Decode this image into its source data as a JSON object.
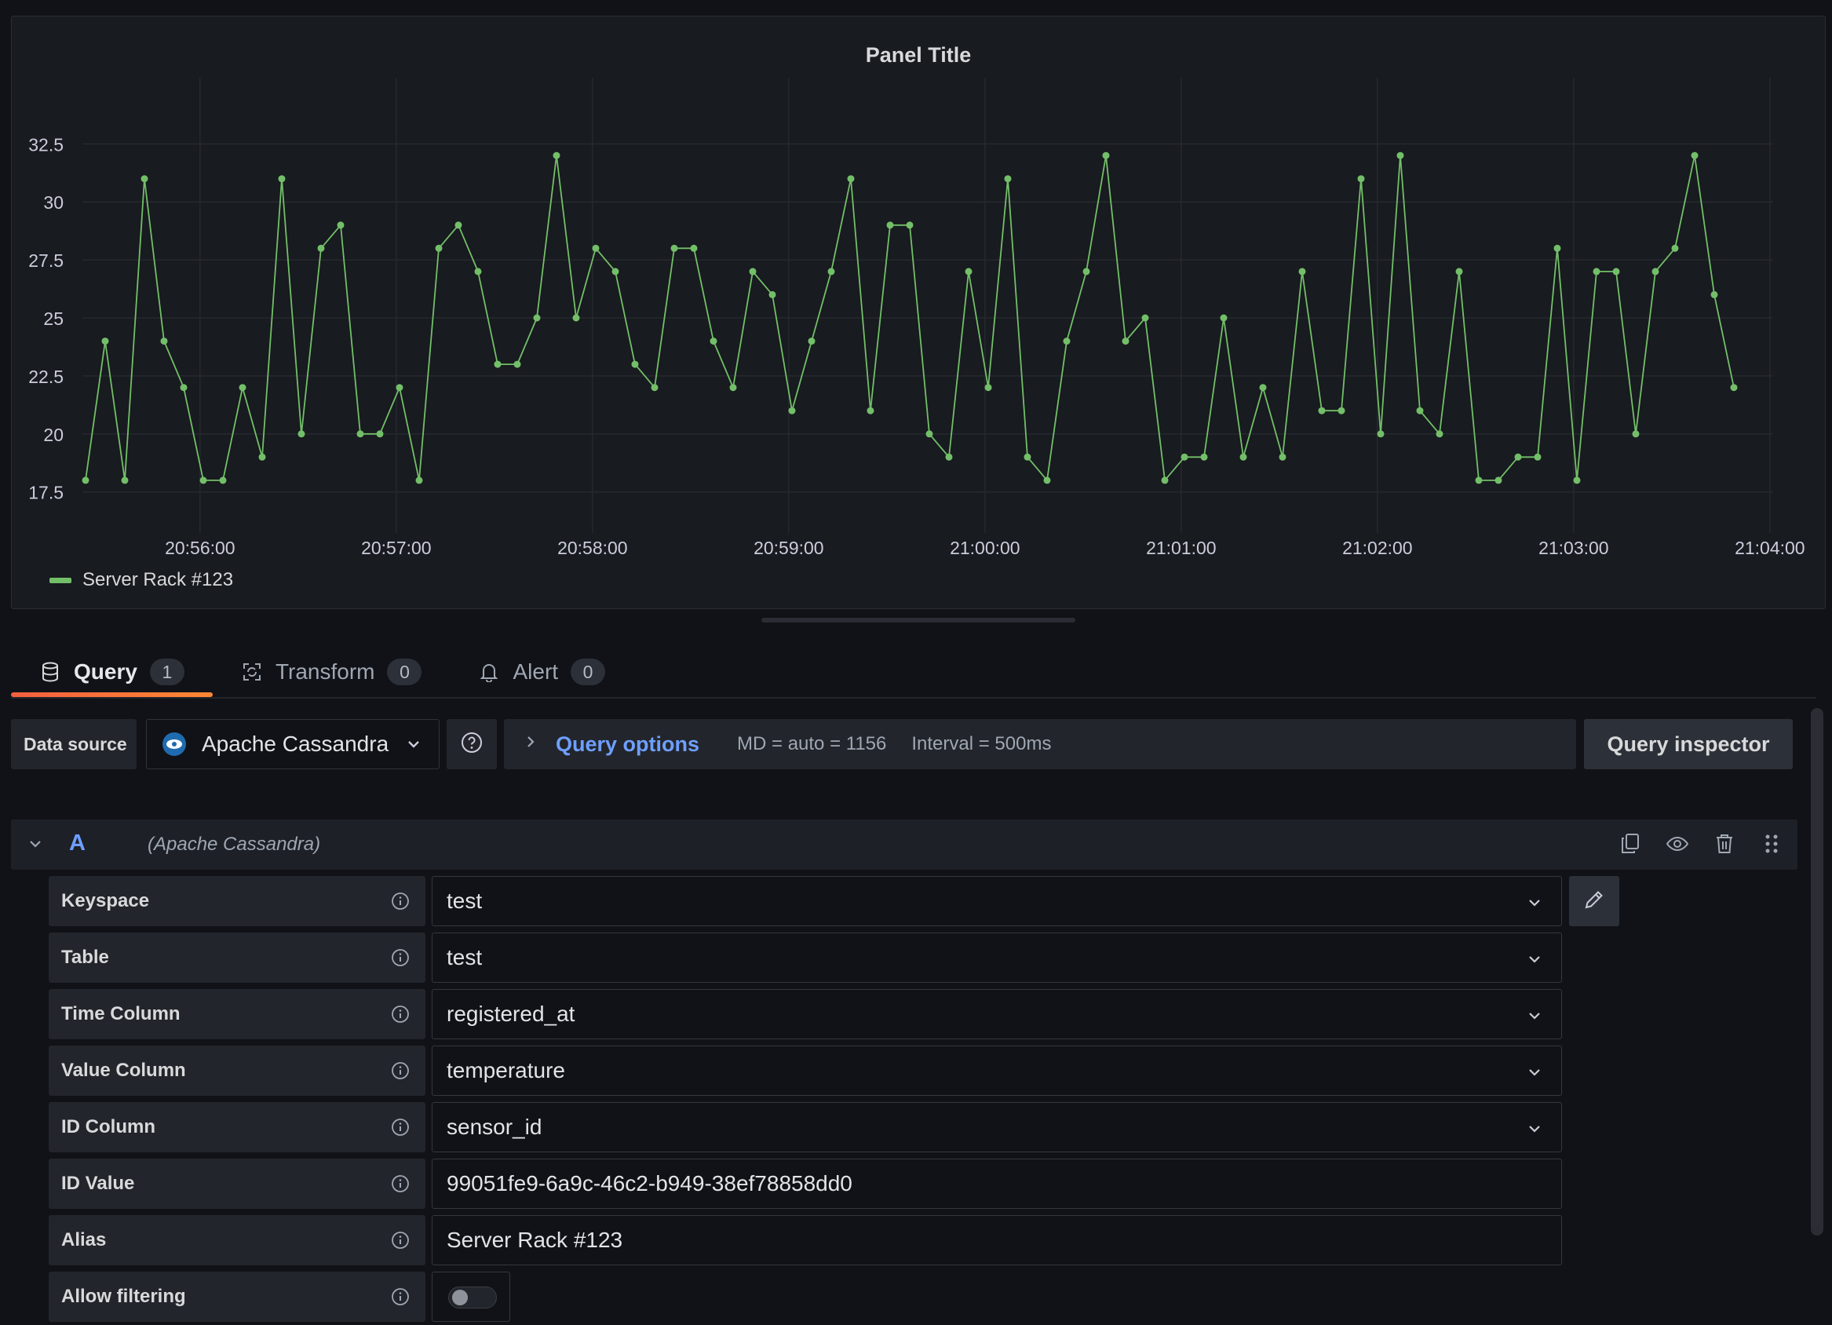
{
  "panel": {
    "title": "Panel Title",
    "legend": [
      {
        "label": "Server Rack #123",
        "color": "#73bf69"
      }
    ]
  },
  "chart_data": {
    "type": "line",
    "title": "Panel Title",
    "xlabel": "",
    "ylabel": "",
    "ylim": [
      16.0,
      34.0
    ],
    "y_ticks": [
      "17.5",
      "20",
      "22.5",
      "25",
      "27.5",
      "30",
      "32.5"
    ],
    "x_ticks": [
      "20:56:00",
      "20:57:00",
      "20:58:00",
      "20:59:00",
      "21:00:00",
      "21:01:00",
      "21:02:00",
      "21:03:00",
      "21:04:00"
    ],
    "x_start": "20:55:25",
    "x_step_seconds": 6,
    "grid": true,
    "legend_position": "bottom-left",
    "series": [
      {
        "name": "Server Rack #123",
        "color": "#73bf69",
        "values": [
          18,
          24,
          18,
          31,
          24,
          22,
          18,
          18,
          22,
          19,
          31,
          20,
          28,
          29,
          20,
          20,
          22,
          18,
          28,
          29,
          27,
          23,
          23,
          25,
          32,
          25,
          28,
          27,
          23,
          22,
          28,
          28,
          24,
          22,
          27,
          26,
          21,
          24,
          27,
          31,
          21,
          29,
          29,
          20,
          19,
          27,
          22,
          31,
          19,
          18,
          24,
          27,
          32,
          24,
          25,
          18,
          19,
          19,
          25,
          19,
          22,
          19,
          27,
          21,
          21,
          31,
          20,
          32,
          21,
          20,
          27,
          18,
          18,
          19,
          19,
          28,
          18,
          27,
          27,
          20,
          27,
          28,
          32,
          26,
          22
        ]
      }
    ]
  },
  "tabs": [
    {
      "label": "Query",
      "count": "1",
      "icon": "database-icon"
    },
    {
      "label": "Transform",
      "count": "0",
      "icon": "transform-icon"
    },
    {
      "label": "Alert",
      "count": "0",
      "icon": "bell-icon"
    }
  ],
  "toolbar": {
    "datasource_label": "Data source",
    "datasource_value": "Apache Cassandra",
    "query_options_label": "Query options",
    "md_text": "MD = auto = 1156",
    "interval_text": "Interval = 500ms",
    "inspector_label": "Query inspector"
  },
  "query": {
    "letter": "A",
    "datasource": "(Apache Cassandra)",
    "fields": {
      "keyspace": {
        "label": "Keyspace",
        "value": "test"
      },
      "table": {
        "label": "Table",
        "value": "test"
      },
      "time_column": {
        "label": "Time Column",
        "value": "registered_at"
      },
      "value_column": {
        "label": "Value Column",
        "value": "temperature"
      },
      "id_column": {
        "label": "ID Column",
        "value": "sensor_id"
      },
      "id_value": {
        "label": "ID Value",
        "value": "99051fe9-6a9c-46c2-b949-38ef78858dd0"
      },
      "alias": {
        "label": "Alias",
        "value": "Server Rack #123"
      },
      "allow_filtering": {
        "label": "Allow filtering",
        "enabled": false
      }
    }
  }
}
